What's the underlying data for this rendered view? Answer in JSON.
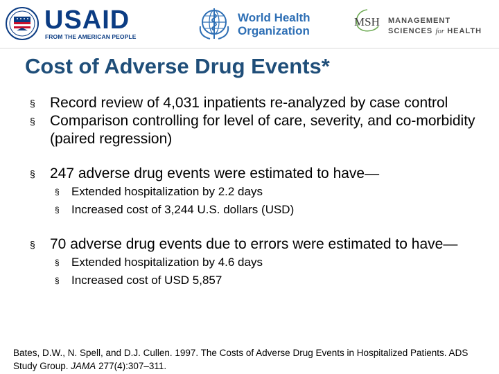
{
  "logos": {
    "usaid": {
      "name": "USAID",
      "tagline": "FROM THE AMERICAN PEOPLE"
    },
    "who": {
      "line1": "World Health",
      "line2": "Organization"
    },
    "msh": {
      "mark": "MSH",
      "line1": "MANAGEMENT",
      "line2_a": "SCIENCES",
      "line2_b": "for",
      "line2_c": "HEALTH"
    }
  },
  "title": "Cost of Adverse Drug Events*",
  "bullets": {
    "b1": "Record review of 4,031 inpatients re-analyzed by case control",
    "b2": "Comparison controlling for level of care, severity, and co-morbidity (paired regression)",
    "b3": "247 adverse drug events were estimated to have—",
    "b3_sub1": "Extended hospitalization by 2.2 days",
    "b3_sub2": "Increased cost of 3,244 U.S. dollars (USD)",
    "b4": "70 adverse drug events due to errors were estimated to have—",
    "b4_sub1": "Extended hospitalization by 4.6 days",
    "b4_sub2": "Increased cost of USD 5,857"
  },
  "bullet_marker": "§",
  "citation": {
    "part1": "Bates, D.W., N. Spell, and D.J. Cullen. 1997. The Costs of Adverse Drug Events in Hospitalized Patients. ADS Study Group. ",
    "journal": "JAMA",
    "part2": " 277(4):307–311."
  }
}
